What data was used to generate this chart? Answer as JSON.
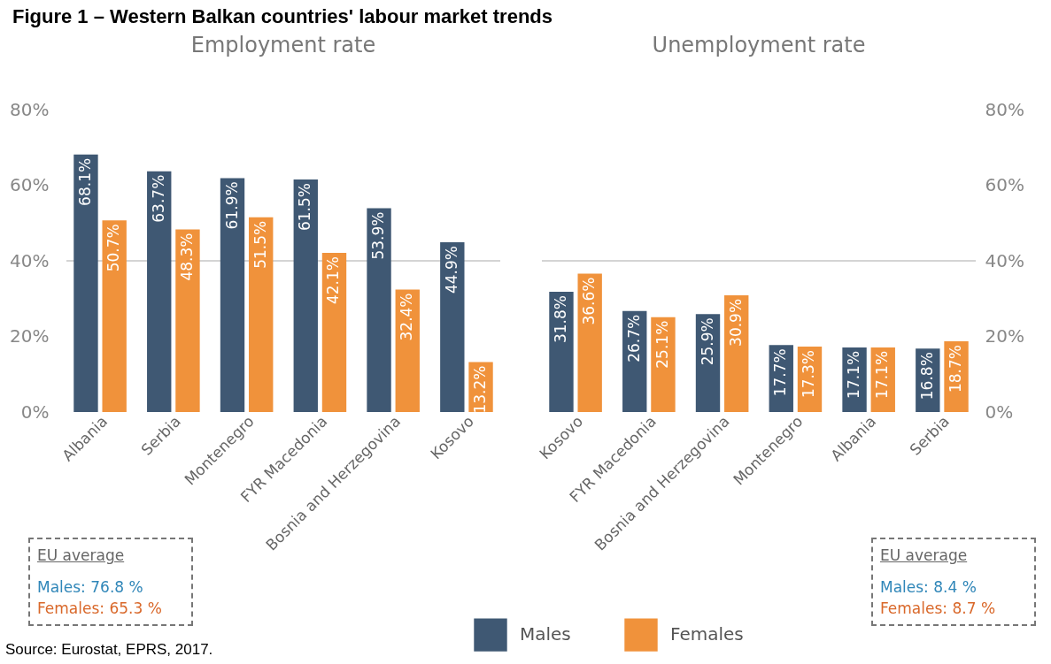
{
  "chart_data": [
    {
      "type": "bar",
      "title": "Employment rate",
      "categories": [
        "Albania",
        "Serbia",
        "Montenegro",
        "FYR Macedonia",
        "Bosnia and Herzegovina",
        "Kosovo"
      ],
      "series": [
        {
          "name": "Males",
          "color": "#3f5873",
          "values": [
            68.1,
            63.7,
            61.9,
            61.5,
            53.9,
            44.9
          ],
          "value_labels": [
            "68.1%",
            "63.7%",
            "61.9%",
            "61.5%",
            "53.9%",
            "44.9%"
          ]
        },
        {
          "name": "Females",
          "color": "#f0923b",
          "values": [
            50.7,
            48.3,
            51.5,
            42.1,
            32.4,
            13.2
          ],
          "value_labels": [
            "50.7%",
            "48.3%",
            "51.5%",
            "42.1%",
            "32.4%",
            "13.2%"
          ]
        }
      ],
      "ylim": [
        0,
        80
      ],
      "yticks": [
        {
          "value": 0,
          "label": "0%"
        },
        {
          "value": 20,
          "label": "20%"
        },
        {
          "value": 40,
          "label": "40%"
        },
        {
          "value": 60,
          "label": "60%"
        },
        {
          "value": 80,
          "label": "80%"
        }
      ],
      "ref_lines": [
        {
          "axis": "y",
          "value": 40
        }
      ],
      "grid": false,
      "legend": "bottom",
      "annotations": [
        "Figure 1 – Western Balkan countries' labour market trends",
        "EU average",
        "Males: 76.8 %",
        "Females: 65.3 %",
        "Source: Eurostat, EPRS, 2017."
      ]
    },
    {
      "type": "bar",
      "title": "Unemployment rate",
      "categories": [
        "Kosovo",
        "FYR Macedonia",
        "Bosnia and Herzegovina",
        "Montenegro",
        "Albania",
        "Serbia"
      ],
      "series": [
        {
          "name": "Males",
          "color": "#3f5873",
          "values": [
            31.8,
            26.7,
            25.9,
            17.7,
            17.1,
            16.8
          ],
          "value_labels": [
            "31.8%",
            "26.7%",
            "25.9%",
            "17.7%",
            "17.1%",
            "16.8%"
          ]
        },
        {
          "name": "Females",
          "color": "#f0923b",
          "values": [
            36.6,
            25.1,
            30.9,
            17.3,
            17.1,
            18.7
          ],
          "value_labels": [
            "36.6%",
            "25.1%",
            "30.9%",
            "17.3%",
            "17.1%",
            "18.7%"
          ]
        }
      ],
      "ylim": [
        0,
        80
      ],
      "yticks": [
        {
          "value": 0,
          "label": "0%"
        },
        {
          "value": 20,
          "label": "20%"
        },
        {
          "value": 40,
          "label": "40%"
        },
        {
          "value": 60,
          "label": "60%"
        },
        {
          "value": 80,
          "label": "80%"
        }
      ],
      "ref_lines": [
        {
          "axis": "y",
          "value": 40
        }
      ],
      "grid": false,
      "legend": "bottom",
      "annotations": [
        "EU average",
        "Males: 8.4 %",
        "Females: 8.7 %"
      ]
    }
  ]
}
